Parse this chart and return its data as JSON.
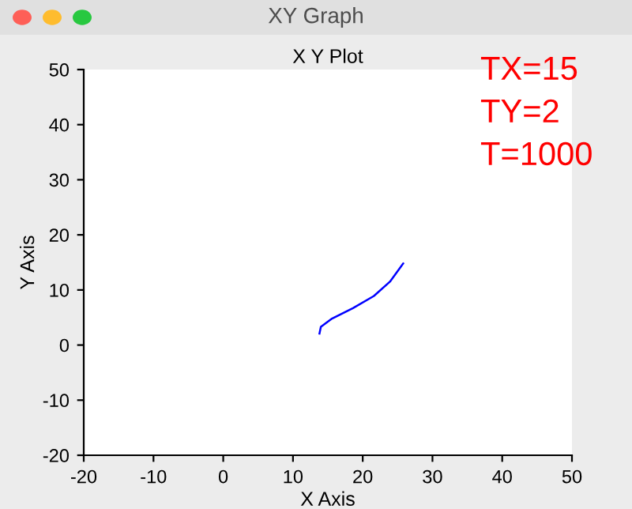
{
  "chart_data": {
    "type": "line",
    "title": "X Y Plot",
    "xlabel": "X Axis",
    "ylabel": "Y Axis",
    "annotations": [
      "XY Graph",
      "TX=15",
      "TY=2",
      "T=1000"
    ],
    "x": [
      13.8,
      14.0,
      15.6,
      18.6,
      21.6,
      23.9,
      25.8
    ],
    "series": [
      {
        "color": "#0000ff",
        "values": [
          2.1,
          3.3,
          4.8,
          6.7,
          8.9,
          11.5,
          14.8
        ]
      }
    ],
    "xlim": [
      -20,
      50
    ],
    "ylim": [
      -20,
      50
    ],
    "xticks": [
      -20,
      -10,
      0,
      10,
      20,
      30,
      40,
      50
    ],
    "yticks": [
      -20,
      -10,
      0,
      10,
      20,
      30,
      40,
      50
    ],
    "grid": false,
    "legend": false,
    "marker": "none",
    "line_style": "solid"
  }
}
